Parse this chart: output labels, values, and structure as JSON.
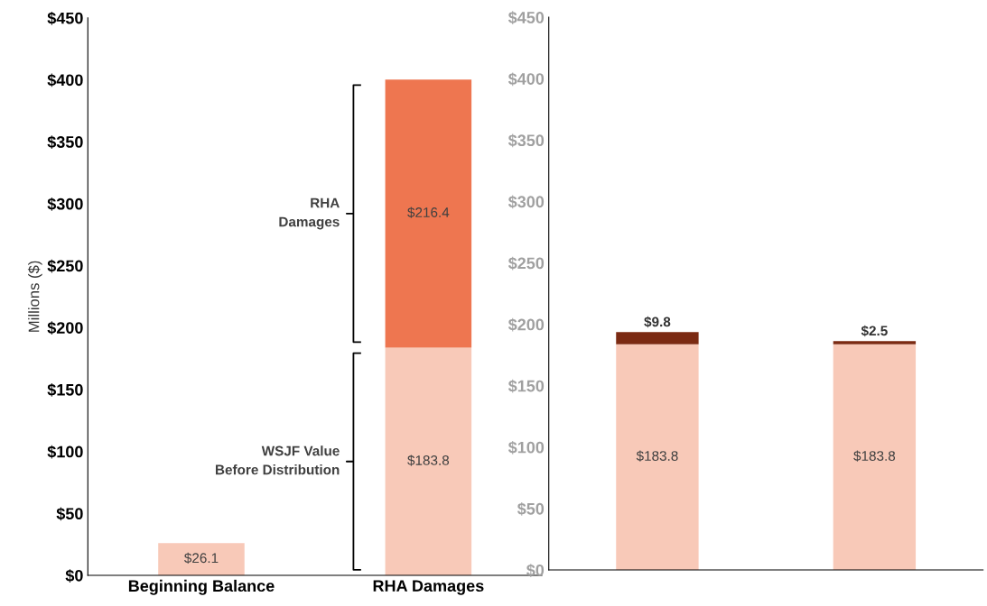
{
  "chart_data": [
    {
      "type": "bar",
      "stacked": true,
      "ylabel": "Millions ($)",
      "categories": [
        "Beginning Balance",
        "RHA Damages"
      ],
      "ylim": [
        0,
        450
      ],
      "yticks": [
        {
          "value": 0,
          "label": "$0"
        },
        {
          "value": 50,
          "label": "$50"
        },
        {
          "value": 100,
          "label": "$100"
        },
        {
          "value": 150,
          "label": "$150"
        },
        {
          "value": 200,
          "label": "$200"
        },
        {
          "value": 250,
          "label": "$250"
        },
        {
          "value": 300,
          "label": "$300"
        },
        {
          "value": 350,
          "label": "$350"
        },
        {
          "value": 400,
          "label": "$400"
        },
        {
          "value": 450,
          "label": "$450"
        }
      ],
      "series": [
        {
          "color": "#f8c9b8",
          "values": [
            26.1,
            183.8
          ],
          "value_labels": [
            "$26.1",
            "$183.8"
          ]
        },
        {
          "color": "#ee7650",
          "values": [
            null,
            216.4
          ],
          "value_labels": [
            null,
            "$216.4"
          ]
        }
      ],
      "annotations": [
        "RHA\nDamages",
        "WSJF Value\nBefore Distribution"
      ]
    },
    {
      "type": "bar",
      "stacked": true,
      "categories": [
        null,
        null
      ],
      "ylim": [
        0,
        450
      ],
      "yticks": [
        {
          "value": 0,
          "label": "$0"
        },
        {
          "value": 50,
          "label": "$50"
        },
        {
          "value": 100,
          "label": "$100"
        },
        {
          "value": 150,
          "label": "$150"
        },
        {
          "value": 200,
          "label": "$200"
        },
        {
          "value": 250,
          "label": "$250"
        },
        {
          "value": 300,
          "label": "$300"
        },
        {
          "value": 350,
          "label": "$350"
        },
        {
          "value": 400,
          "label": "$400"
        },
        {
          "value": 450,
          "label": "$450"
        }
      ],
      "series": [
        {
          "color": "#f8c9b8",
          "values": [
            183.8,
            183.8
          ],
          "value_labels": [
            "$183.8",
            "$183.8"
          ]
        },
        {
          "color": "#7b2a12",
          "values": [
            9.8,
            2.5
          ],
          "value_labels": [
            "$9.8",
            "$2.5"
          ]
        }
      ]
    }
  ]
}
